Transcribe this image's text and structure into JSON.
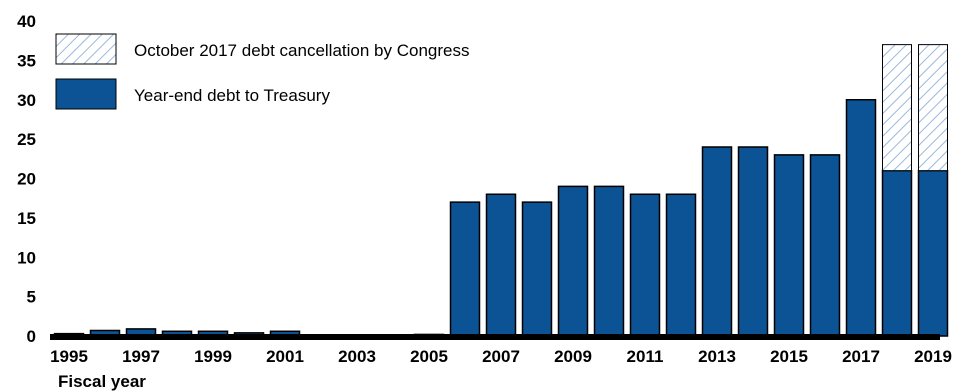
{
  "chart_data": {
    "type": "bar",
    "stacked": true,
    "xlabel": "Fiscal year",
    "ylabel": "",
    "ylim": [
      0,
      40
    ],
    "yticks": [
      0,
      5,
      10,
      15,
      20,
      25,
      30,
      35,
      40
    ],
    "categories": [
      "1995",
      "1996",
      "1997",
      "1998",
      "1999",
      "2000",
      "2001",
      "2002",
      "2003",
      "2004",
      "2005",
      "2006",
      "2007",
      "2008",
      "2009",
      "2010",
      "2011",
      "2012",
      "2013",
      "2014",
      "2015",
      "2016",
      "2017",
      "2018",
      "2019"
    ],
    "xtick_labels": [
      "1995",
      "1997",
      "1999",
      "2001",
      "2003",
      "2005",
      "2007",
      "2009",
      "2011",
      "2013",
      "2015",
      "2017",
      "2019"
    ],
    "series": [
      {
        "name": "Year-end debt to Treasury",
        "color": "#0b5394",
        "values": [
          0.3,
          0.7,
          0.9,
          0.6,
          0.6,
          0.4,
          0.6,
          0.1,
          0.1,
          0.1,
          0.2,
          17,
          18,
          17,
          19,
          19,
          18,
          18,
          24,
          24,
          23,
          23,
          30,
          21,
          21
        ]
      },
      {
        "name": "October 2017 debt cancellation by Congress",
        "color": "#b9cfe8",
        "pattern": "diagonal-hatch",
        "values": [
          0,
          0,
          0,
          0,
          0,
          0,
          0,
          0,
          0,
          0,
          0,
          0,
          0,
          0,
          0,
          0,
          0,
          0,
          0,
          0,
          0,
          0,
          0,
          16,
          16
        ]
      }
    ],
    "legend": {
      "placement": "top-left",
      "items": [
        {
          "label": "October 2017 debt cancellation by Congress",
          "style": "hatch"
        },
        {
          "label": "Year-end debt to Treasury",
          "style": "solid"
        }
      ]
    },
    "grid": false
  }
}
